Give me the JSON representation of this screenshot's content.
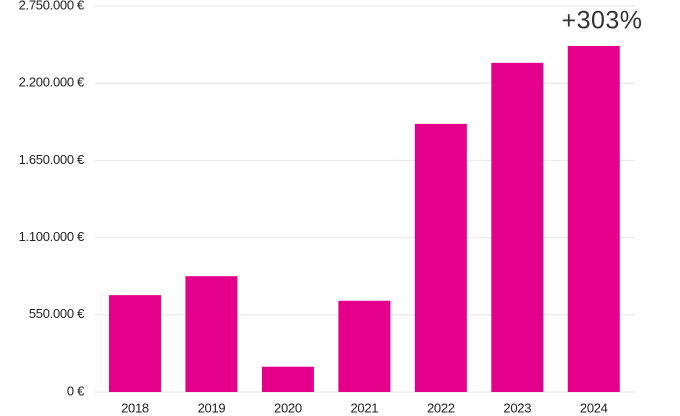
{
  "chart_data": {
    "type": "bar",
    "categories": [
      "2018",
      "2019",
      "2020",
      "2021",
      "2022",
      "2023",
      "2024"
    ],
    "values": [
      690000,
      825000,
      180000,
      650000,
      1910000,
      2345000,
      2465000
    ],
    "color": "#e5008c",
    "ylim": [
      0,
      2750000
    ],
    "yticks": [
      {
        "value": 0,
        "label": "0 €"
      },
      {
        "value": 550000,
        "label": "550.000 €"
      },
      {
        "value": 1100000,
        "label": "1.100.000 €"
      },
      {
        "value": 1650000,
        "label": "1.650.000 €"
      },
      {
        "value": 2200000,
        "label": "2.200.000 €"
      },
      {
        "value": 2750000,
        "label": "2.750.000 €"
      }
    ],
    "grid": true,
    "annotation": "+303%"
  }
}
